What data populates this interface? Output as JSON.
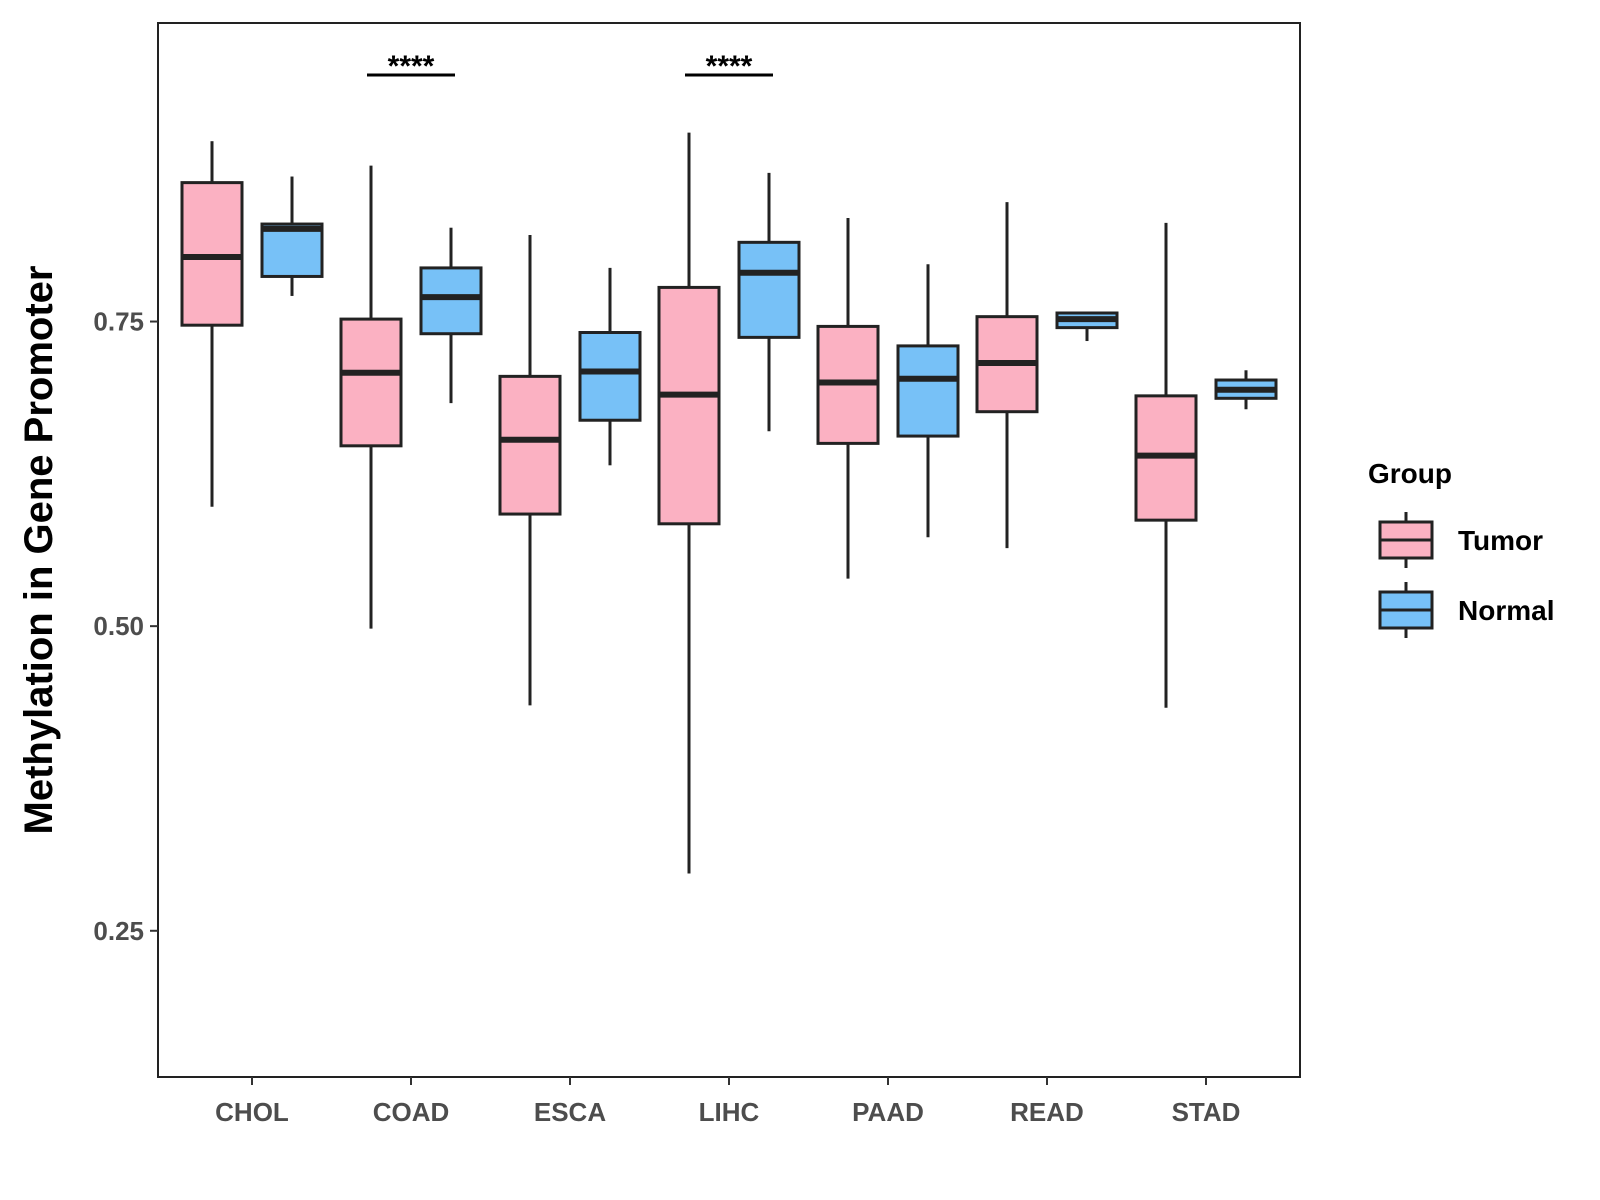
{
  "chart_data": {
    "type": "boxplot",
    "title": "",
    "xlabel": "",
    "ylabel": "Methylation in Gene Promoter",
    "ylim": [
      0.13,
      0.995
    ],
    "yticks": [
      0.25,
      0.5,
      0.75
    ],
    "ytick_labels": [
      "0.25",
      "0.50",
      "0.75"
    ],
    "categories": [
      "CHOL",
      "COAD",
      "ESCA",
      "LIHC",
      "PAAD",
      "READ",
      "STAD"
    ],
    "legend": {
      "title": "Group",
      "position": "right",
      "entries": [
        "Tumor",
        "Normal"
      ]
    },
    "colors": {
      "Tumor": "#FBB1C2",
      "Normal": "#77C1F7",
      "outline": "#222222"
    },
    "series": [
      {
        "name": "Tumor",
        "boxes": [
          {
            "min": 0.598,
            "q1": 0.747,
            "median": 0.803,
            "q3": 0.864,
            "max": 0.898
          },
          {
            "min": 0.498,
            "q1": 0.648,
            "median": 0.708,
            "q3": 0.752,
            "max": 0.878
          },
          {
            "min": 0.435,
            "q1": 0.592,
            "median": 0.653,
            "q3": 0.705,
            "max": 0.821
          },
          {
            "min": 0.297,
            "q1": 0.584,
            "median": 0.69,
            "q3": 0.778,
            "max": 0.905
          },
          {
            "min": 0.539,
            "q1": 0.65,
            "median": 0.7,
            "q3": 0.746,
            "max": 0.835
          },
          {
            "min": 0.564,
            "q1": 0.676,
            "median": 0.716,
            "q3": 0.754,
            "max": 0.848
          },
          {
            "min": 0.433,
            "q1": 0.587,
            "median": 0.64,
            "q3": 0.689,
            "max": 0.831
          }
        ]
      },
      {
        "name": "Normal",
        "boxes": [
          {
            "min": 0.771,
            "q1": 0.787,
            "median": 0.826,
            "q3": 0.83,
            "max": 0.869
          },
          {
            "min": 0.683,
            "q1": 0.74,
            "median": 0.77,
            "q3": 0.794,
            "max": 0.827
          },
          {
            "min": 0.632,
            "q1": 0.669,
            "median": 0.709,
            "q3": 0.741,
            "max": 0.794
          },
          {
            "min": 0.66,
            "q1": 0.737,
            "median": 0.79,
            "q3": 0.815,
            "max": 0.872
          },
          {
            "min": 0.573,
            "q1": 0.656,
            "median": 0.703,
            "q3": 0.73,
            "max": 0.797
          },
          {
            "min": 0.734,
            "q1": 0.745,
            "median": 0.752,
            "q3": 0.757,
            "max": 0.757
          },
          {
            "min": 0.678,
            "q1": 0.687,
            "median": 0.694,
            "q3": 0.702,
            "max": 0.71
          }
        ]
      }
    ],
    "annotations": [
      {
        "category": "COAD",
        "text": "****"
      },
      {
        "category": "LIHC",
        "text": "****"
      }
    ]
  }
}
